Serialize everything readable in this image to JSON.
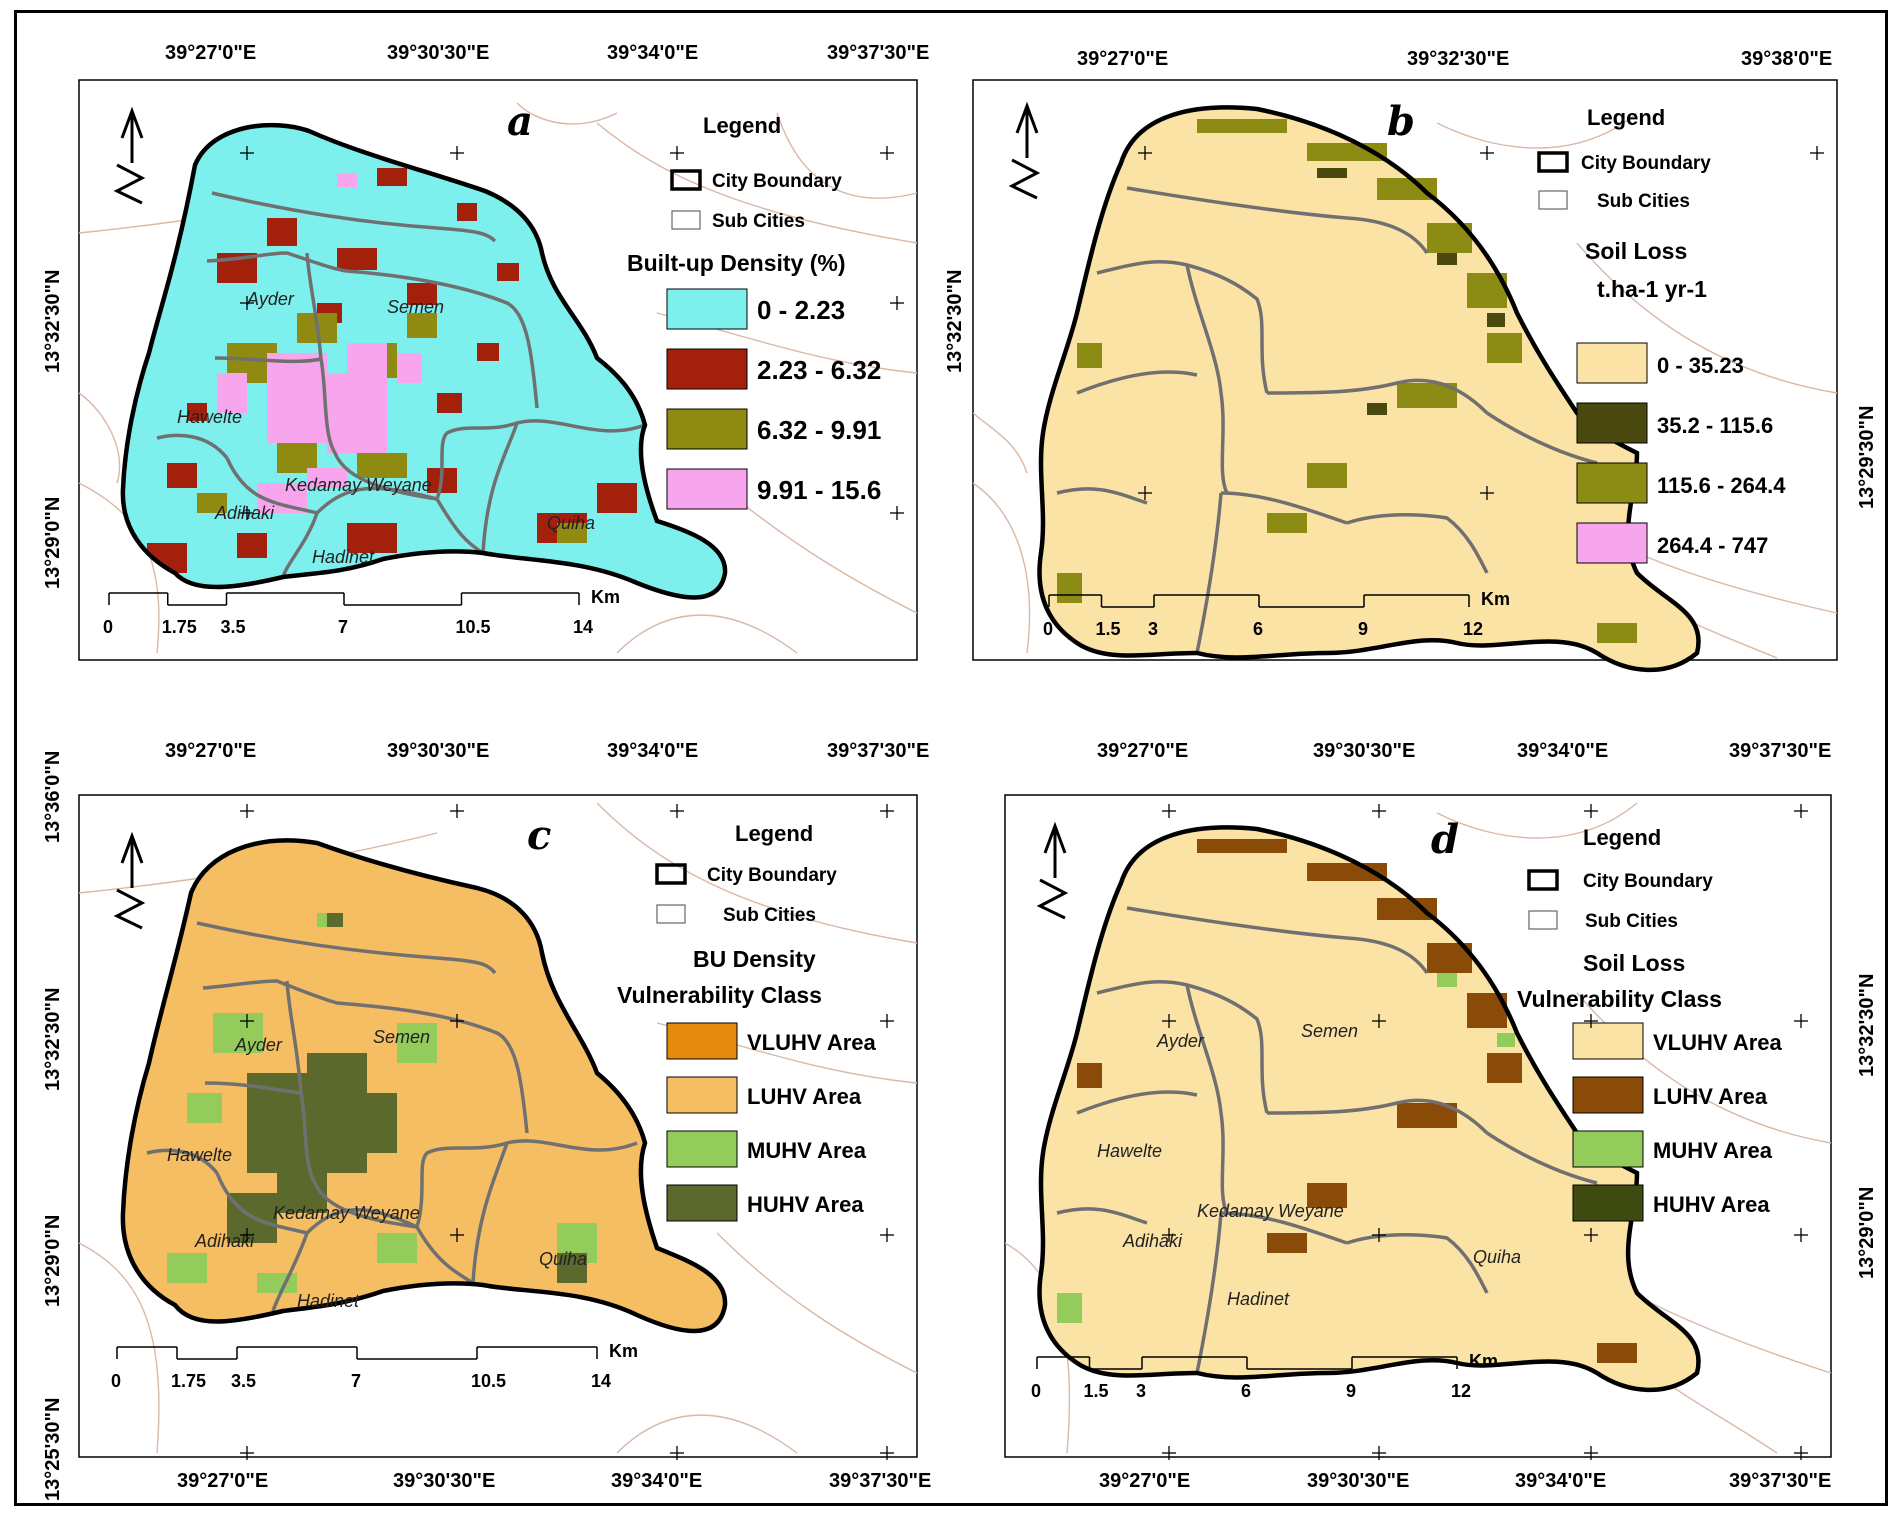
{
  "panels": [
    {
      "letter": "a",
      "x_ticks": [
        "39°27'0\"E",
        "39°30'30\"E",
        "39°34'0\"E",
        "39°37'30\"E"
      ],
      "y_ticks": [
        "13°32'30\"N",
        "13°29'0\"N"
      ],
      "legend_title": "Legend",
      "boundary_label": "City Boundary",
      "subcities_label": "Sub Cities",
      "class_heading": [
        "Built-up Density (%)"
      ],
      "classes": [
        {
          "label": "0 - 2.23",
          "color": "#7df0ee"
        },
        {
          "label": "2.23 - 6.32",
          "color": "#a3200c"
        },
        {
          "label": "6.32 - 9.91",
          "color": "#8f8a12"
        },
        {
          "label": "9.91 - 15.6",
          "color": "#f7a6ee"
        }
      ],
      "subcities": [
        "Ayder",
        "Semen",
        "Hawelte",
        "Kedamay Weyane",
        "Adihaki",
        "Quiha",
        "Hadinet"
      ],
      "scale_labels": [
        "0",
        "1.75",
        "3.5",
        "7",
        "10.5",
        "14"
      ],
      "scale_unit": "Km"
    },
    {
      "letter": "b",
      "x_ticks": [
        "39°27'0\"E",
        "39°32'30\"E",
        "39°38'0\"E"
      ],
      "x_ticks_bottom": [
        "39°27'0\"E",
        "39°30'30\"E",
        "39°34'0\"E",
        "39°37'30\"E"
      ],
      "y_ticks": [
        "13°32'30\"N"
      ],
      "y_ticks_right": [
        "13°29'30\"N"
      ],
      "legend_title": "Legend",
      "boundary_label": "City Boundary",
      "subcities_label": "Sub Cities",
      "class_heading": [
        "Soil Loss",
        "t.ha-1 yr-1"
      ],
      "classes": [
        {
          "label": "0 - 35.23",
          "color": "#fbe3a6"
        },
        {
          "label": "35.2 - 115.6",
          "color": "#4a4a10"
        },
        {
          "label": "115.6 - 264.4",
          "color": "#8c8c14"
        },
        {
          "label": "264.4 - 747",
          "color": "#f7a6ee"
        }
      ],
      "scale_labels": [
        "0",
        "1.5",
        "3",
        "6",
        "9",
        "12"
      ],
      "scale_unit": "Km"
    },
    {
      "letter": "c",
      "y_ticks": [
        "13°36'0\"N",
        "13°32'30\"N",
        "13°29'0\"N",
        "13°25'30\"N"
      ],
      "x_ticks_bottom": [
        "39°27'0\"E",
        "39°30'30\"E",
        "39°34'0\"E",
        "39°37'30\"E"
      ],
      "legend_title": "Legend",
      "boundary_label": "City Boundary",
      "subcities_label": "Sub Cities",
      "class_heading": [
        "BU Density",
        "Vulnerability Class"
      ],
      "classes": [
        {
          "label": "VLUHV Area",
          "color": "#e58a0c"
        },
        {
          "label": "LUHV Area",
          "color": "#f5be62"
        },
        {
          "label": "MUHV Area",
          "color": "#93cc5a"
        },
        {
          "label": "HUHV Area",
          "color": "#5b6a2c"
        }
      ],
      "subcities": [
        "Ayder",
        "Semen",
        "Hawelte",
        "Kedamay Weyane",
        "Adihaki",
        "Quiha",
        "Hadinet"
      ],
      "scale_labels": [
        "0",
        "1.75",
        "3.5",
        "7",
        "10.5",
        "14"
      ],
      "scale_unit": "Km"
    },
    {
      "letter": "d",
      "y_ticks_right": [
        "13°32'30\"N",
        "13°29'0\"N"
      ],
      "x_ticks_bottom": [
        "39°27'0\"E",
        "39°30'30\"E",
        "39°34'0\"E",
        "39°37'30\"E"
      ],
      "legend_title": "Legend",
      "boundary_label": "City Boundary",
      "subcities_label": "Sub Cities",
      "class_heading": [
        "Soil Loss",
        "Vulnerability Class"
      ],
      "classes": [
        {
          "label": "VLUHV Area",
          "color": "#fbe3a6"
        },
        {
          "label": "LUHV Area",
          "color": "#8a4a08"
        },
        {
          "label": "MUHV Area",
          "color": "#93cc5a"
        },
        {
          "label": "HUHV Area",
          "color": "#3d4a10"
        }
      ],
      "subcities": [
        "Ayder",
        "Semen",
        "Hawelte",
        "Kedamay Weyane",
        "Adihaki",
        "Quiha",
        "Hadinet"
      ],
      "scale_labels": [
        "0",
        "1.5",
        "3",
        "6",
        "9",
        "12"
      ],
      "scale_unit": "Km"
    }
  ]
}
